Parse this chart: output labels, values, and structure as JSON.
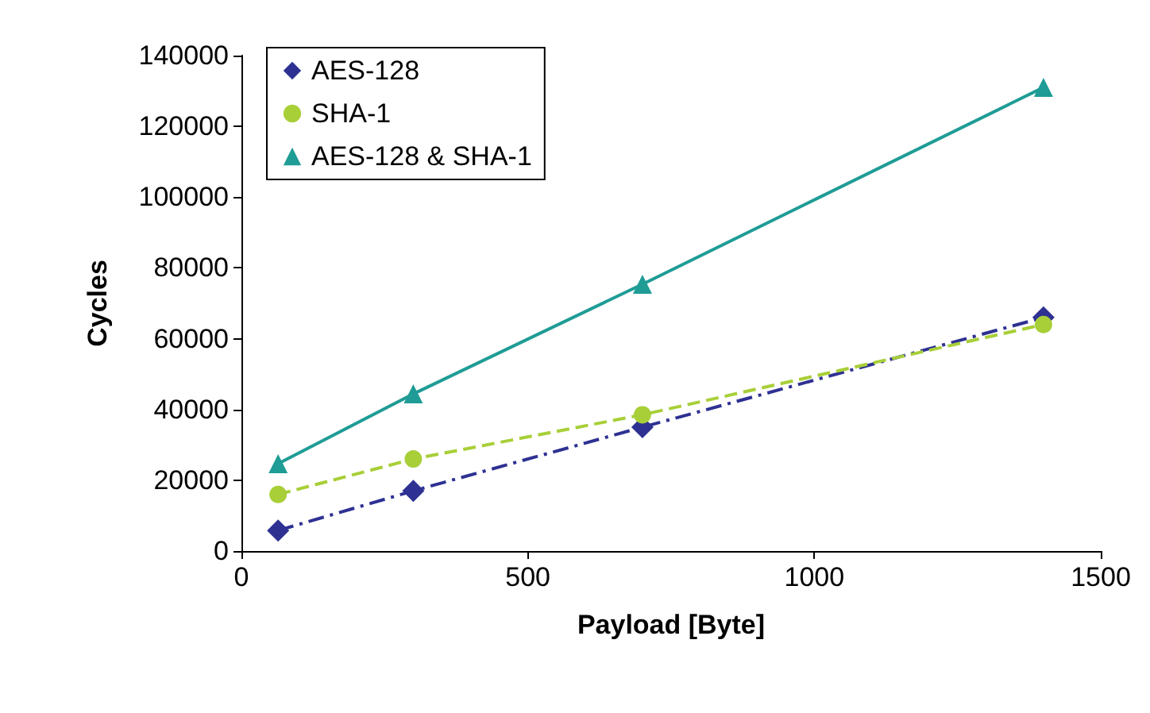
{
  "chart_data": {
    "type": "line",
    "xlabel": "Payload [Byte]",
    "ylabel": "Cycles",
    "xlim": [
      0,
      1500
    ],
    "xticks": [
      0,
      500,
      1000,
      1500
    ],
    "ylim": [
      0,
      140000
    ],
    "yticks": [
      0,
      20000,
      40000,
      60000,
      80000,
      100000,
      120000,
      140000
    ],
    "grid": false,
    "legend": "top left",
    "series": [
      {
        "name": "AES-128",
        "color": "#2e3192",
        "x": [
          64,
          300,
          700,
          1400
        ],
        "values": [
          5800,
          17000,
          35000,
          66000
        ],
        "marker": "diamond",
        "line_style": "dashdot"
      },
      {
        "name": "SHA-1",
        "color": "#a8cf38",
        "x": [
          64,
          300,
          700,
          1400
        ],
        "values": [
          16000,
          26000,
          38500,
          64000
        ],
        "marker": "circle",
        "line_style": "dashed"
      },
      {
        "name": "AES-128 & SHA-1",
        "color": "#1f9c96",
        "x": [
          64,
          300,
          700,
          1400
        ],
        "values": [
          24700,
          44400,
          75400,
          131000
        ],
        "marker": "triangle",
        "line_style": "solid"
      }
    ]
  }
}
